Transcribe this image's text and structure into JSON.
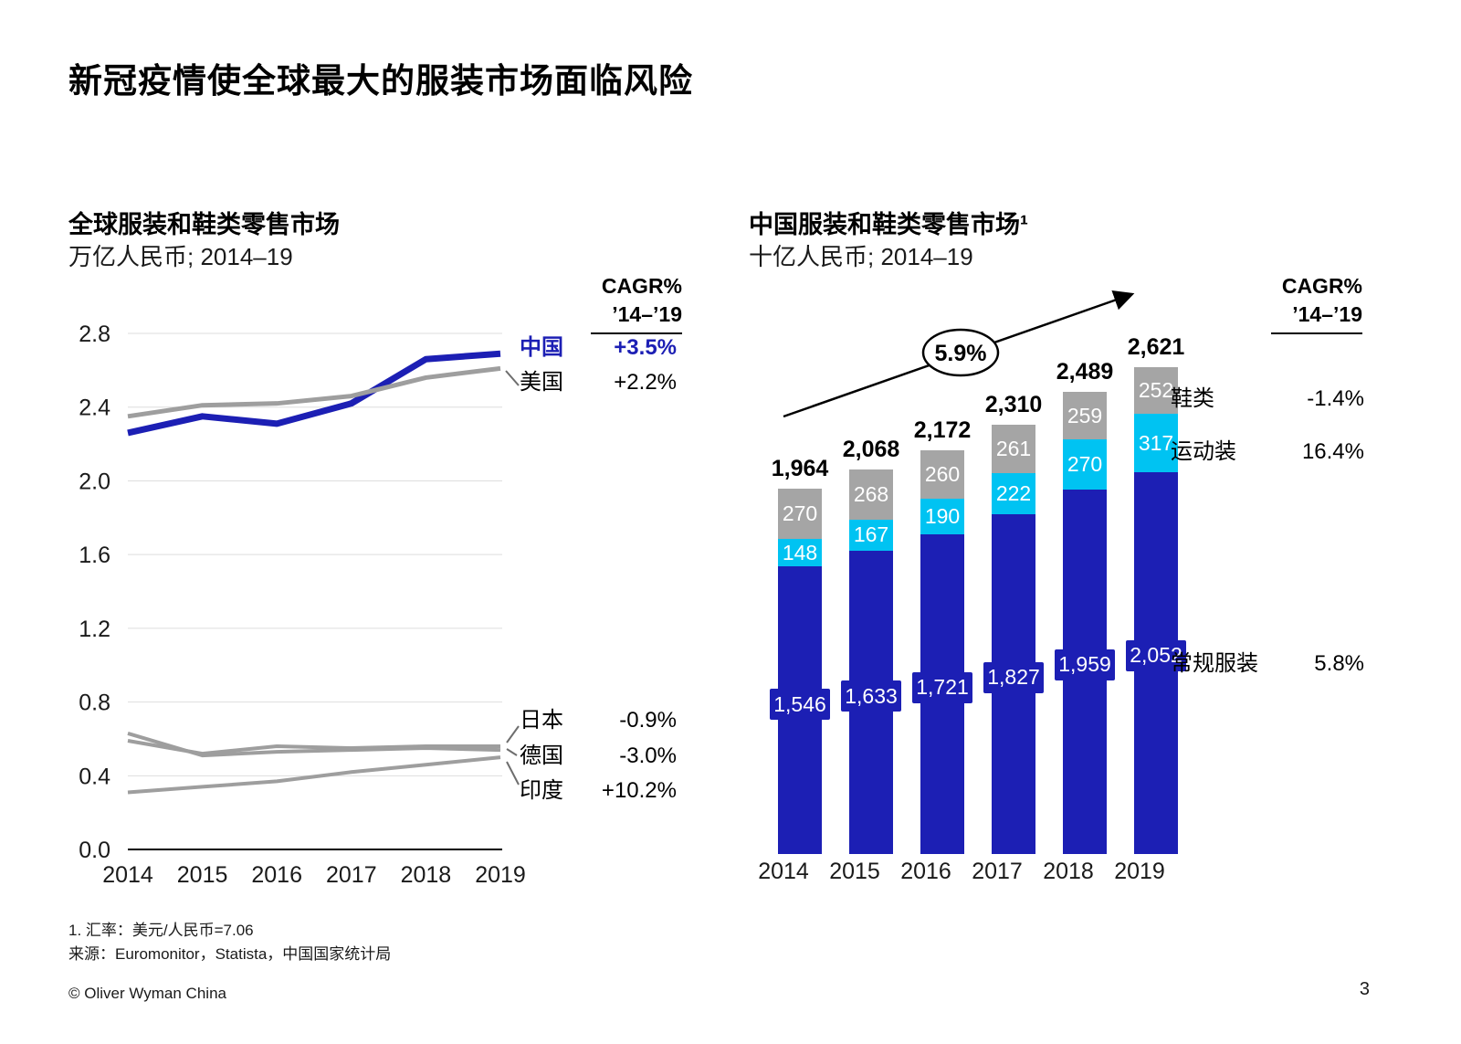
{
  "slide": {
    "title": "新冠疫情使全球最大的服装市场面临风险",
    "copyright": "© Oliver Wyman China",
    "page_number": "3"
  },
  "footnotes": [
    "1. 汇率：美元/人民币=7.06",
    "来源：Euromonitor，Statista，中国国家统计局"
  ],
  "colors": {
    "accent_blue": "#1C1FB4",
    "cyan": "#00C3F2",
    "bar_gray": "#A5A5A5",
    "line_gray": "#9E9E9E",
    "gridline": "#DEDEDE",
    "text": "#000000"
  },
  "chart_data": [
    {
      "id": "global-apparel-line-chart",
      "type": "line",
      "title": "全球服装和鞋类零售市场",
      "subtitle": "万亿人民币; 2014–19",
      "cagr_header": [
        "CAGR%",
        "’14–’19"
      ],
      "x": [
        2014,
        2015,
        2016,
        2017,
        2018,
        2019
      ],
      "ylim": [
        0.0,
        2.8
      ],
      "ytick_step": 0.4,
      "grid": true,
      "legend_position": "right",
      "series": [
        {
          "name": "中国",
          "color": "#1C1FB4",
          "cagr": "+3.5%",
          "values": [
            2.26,
            2.35,
            2.31,
            2.42,
            2.66,
            2.69
          ]
        },
        {
          "name": "美国",
          "color": "#9E9E9E",
          "cagr": "+2.2%",
          "values": [
            2.35,
            2.41,
            2.42,
            2.46,
            2.56,
            2.61
          ]
        },
        {
          "name": "日本",
          "color": "#9E9E9E",
          "cagr": "-0.9%",
          "values": [
            0.59,
            0.52,
            0.56,
            0.55,
            0.56,
            0.56
          ]
        },
        {
          "name": "德国",
          "color": "#9E9E9E",
          "cagr": "-3.0%",
          "values": [
            0.63,
            0.51,
            0.53,
            0.54,
            0.55,
            0.54
          ]
        },
        {
          "name": "印度",
          "color": "#9E9E9E",
          "cagr": "+10.2%",
          "values": [
            0.31,
            0.34,
            0.37,
            0.42,
            0.46,
            0.5
          ]
        }
      ]
    },
    {
      "id": "china-apparel-stacked-bar-chart",
      "type": "bar",
      "title": "中国服装和鞋类零售市场¹",
      "subtitle": "十亿人民币; 2014–19",
      "cagr_header": [
        "CAGR%",
        "’14–’19"
      ],
      "growth_annotation": "5.9%",
      "categories": [
        "2014",
        "2015",
        "2016",
        "2017",
        "2018",
        "2019"
      ],
      "totals": [
        "1,964",
        "2,068",
        "2,172",
        "2,310",
        "2,489",
        "2,621"
      ],
      "series": [
        {
          "name": "常规服装",
          "color": "#1C1FB4",
          "cagr": "5.8%",
          "values": [
            1546,
            1633,
            1721,
            1827,
            1959,
            2052
          ]
        },
        {
          "name": "运动装",
          "color": "#00C3F2",
          "cagr": "16.4%",
          "values": [
            148,
            167,
            190,
            222,
            270,
            317
          ]
        },
        {
          "name": "鞋类",
          "color": "#A5A5A5",
          "cagr": "-1.4%",
          "values": [
            270,
            268,
            260,
            261,
            259,
            252
          ]
        }
      ]
    }
  ]
}
